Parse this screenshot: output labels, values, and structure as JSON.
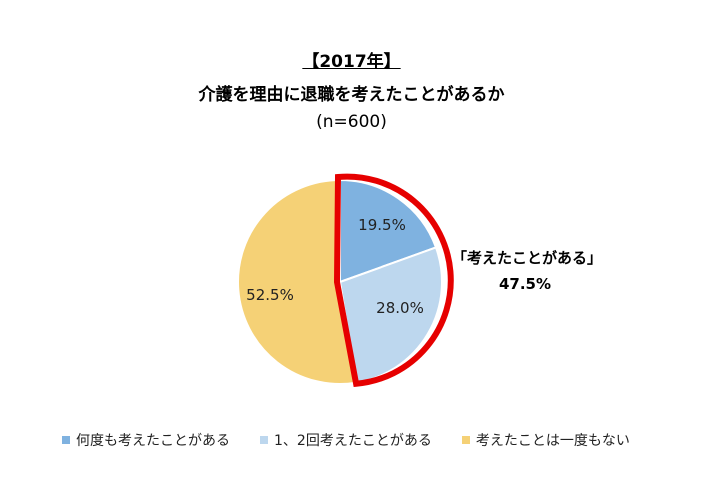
{
  "title": {
    "year": "【2017年】",
    "question": "介護を理由に退職を考えたことがあるか",
    "sample": "(n=600)"
  },
  "chart_data": {
    "type": "pie",
    "title": "介護を理由に退職を考えたことがあるか",
    "subtitle": "【2017年】 (n=600)",
    "categories": [
      "何度も考えたことがある",
      "1、2回考えたことがある",
      "考えたことは一度もない"
    ],
    "values": [
      19.5,
      28.0,
      52.5
    ],
    "labels": [
      "19.5%",
      "28.0%",
      "52.5%"
    ],
    "colors": [
      "#7fb2e0",
      "#bdd7ee",
      "#f5d176"
    ],
    "annotation": {
      "text": "「考えたことがある」",
      "value": "47.5%",
      "highlight_color": "#e60000"
    },
    "legend_position": "bottom"
  },
  "callout": {
    "label": "「考えたことがある」",
    "value": "47.5%"
  },
  "legend": [
    {
      "label": "何度も考えたことがある",
      "color": "#7fb2e0"
    },
    {
      "label": "1、2回考えたことがある",
      "color": "#bdd7ee"
    },
    {
      "label": "考えたことは一度もない",
      "color": "#f5d176"
    }
  ]
}
